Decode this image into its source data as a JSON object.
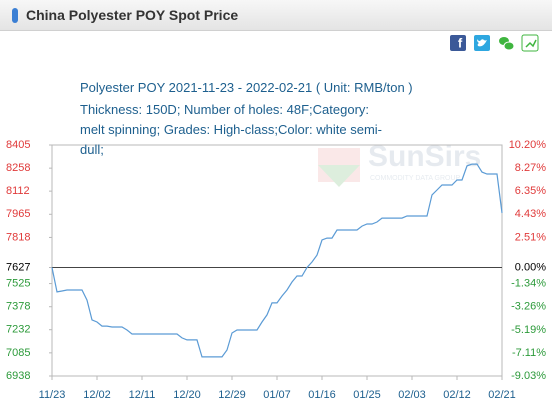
{
  "header": {
    "title": "China Polyester POY Spot Price"
  },
  "watermark": {
    "text": "SunSirs",
    "tagline": "COMMODITY DATA GROUP"
  },
  "chart_data": {
    "type": "line",
    "title": "Polyester POY 2021-11-23 - 2022-02-21   ( Unit: RMB/ton )",
    "subtitle": "Thickness: 150D; Number of holes: 48F;Category: melt spinning; Grades: High-class;Color: white semi-dull;",
    "color": "#5b9bd5",
    "categories": [
      "11/23",
      null,
      null,
      null,
      null,
      null,
      null,
      null,
      null,
      "12/02",
      null,
      null,
      null,
      null,
      null,
      null,
      null,
      null,
      "12/11",
      null,
      null,
      null,
      null,
      null,
      null,
      null,
      null,
      "12/20",
      null,
      null,
      null,
      null,
      null,
      null,
      null,
      null,
      "12/29",
      null,
      null,
      null,
      null,
      null,
      null,
      null,
      null,
      "01/07",
      null,
      null,
      null,
      null,
      null,
      null,
      null,
      null,
      "01/16",
      null,
      null,
      null,
      null,
      null,
      null,
      null,
      null,
      "01/25",
      null,
      null,
      null,
      null,
      null,
      null,
      null,
      null,
      "02/03",
      null,
      null,
      null,
      null,
      null,
      null,
      null,
      null,
      "02/12",
      null,
      null,
      null,
      null,
      null,
      null,
      null,
      null,
      "02/21"
    ],
    "values": [
      7627,
      7472,
      7478,
      7484,
      7484,
      7484,
      7484,
      7420,
      7294,
      7281,
      7255,
      7255,
      7249,
      7249,
      7249,
      7230,
      7205,
      7205,
      7205,
      7205,
      7205,
      7205,
      7205,
      7205,
      7205,
      7205,
      7180,
      7167,
      7167,
      7167,
      7059,
      7059,
      7059,
      7059,
      7059,
      7103,
      7211,
      7230,
      7230,
      7230,
      7230,
      7230,
      7281,
      7326,
      7402,
      7402,
      7446,
      7484,
      7535,
      7573,
      7573,
      7627,
      7662,
      7706,
      7802,
      7814,
      7814,
      7865,
      7865,
      7865,
      7865,
      7865,
      7890,
      7903,
      7903,
      7916,
      7941,
      7941,
      7941,
      7941,
      7941,
      7954,
      7954,
      7954,
      7954,
      7954,
      8088,
      8119,
      8151,
      8151,
      8151,
      8183,
      8183,
      8272,
      8284,
      8284,
      8233,
      8221,
      8221,
      8221,
      7973
    ],
    "ylim": [
      6938,
      8405
    ],
    "yticks": [
      8405,
      8258,
      8112,
      7965,
      7818,
      7627,
      7525,
      7378,
      7232,
      7085,
      6938
    ],
    "y2lim": [
      -9.03,
      10.2
    ],
    "y2ticks": [
      {
        "value": 10.2,
        "label": "10.20%"
      },
      {
        "value": 8.27,
        "label": "8.27%"
      },
      {
        "value": 6.35,
        "label": "6.35%"
      },
      {
        "value": 4.43,
        "label": "4.43%"
      },
      {
        "value": 2.51,
        "label": "2.51%"
      },
      {
        "value": 0,
        "label": "0.00%"
      },
      {
        "value": -1.34,
        "label": "-1.34%"
      },
      {
        "value": -3.26,
        "label": "-3.26%"
      },
      {
        "value": -5.19,
        "label": "-5.19%"
      },
      {
        "value": -7.11,
        "label": "-7.11%"
      },
      {
        "value": -9.03,
        "label": "-9.03%"
      }
    ],
    "up_color": "#e03a3a",
    "down_color": "#2c9a3a",
    "base_color": "#000000"
  }
}
